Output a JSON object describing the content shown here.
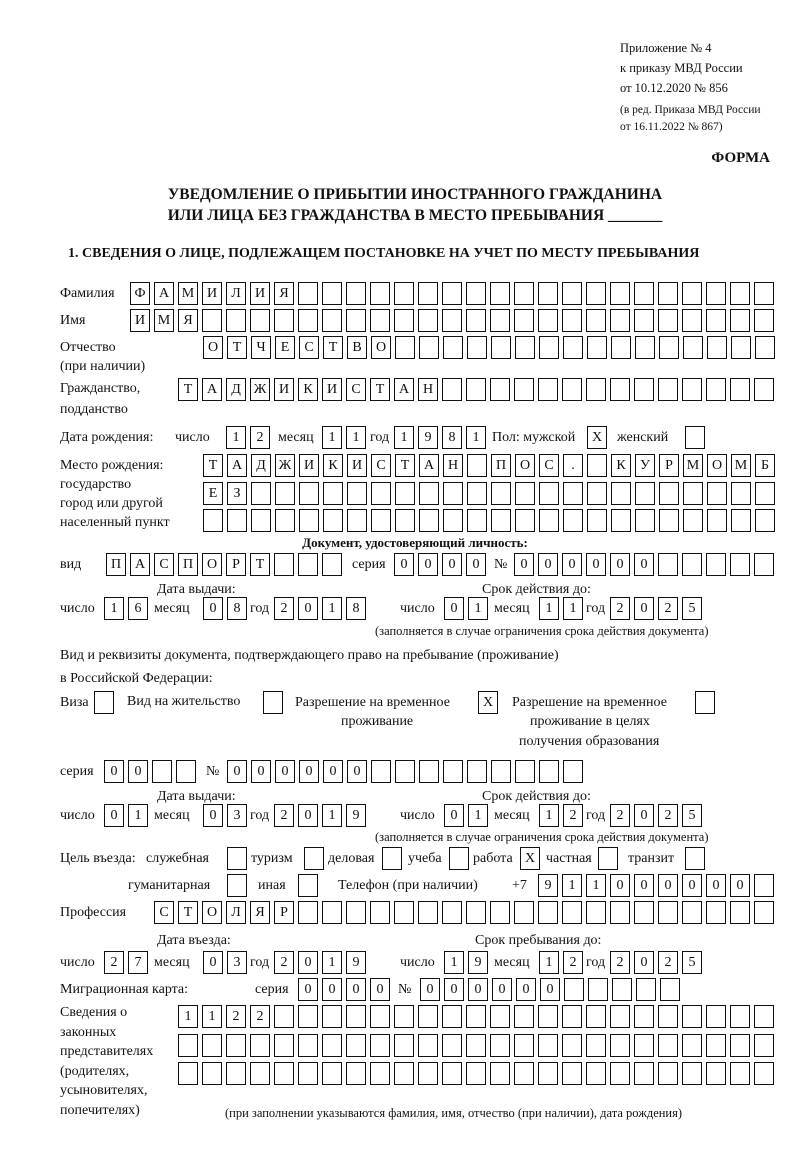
{
  "header": {
    "lines": [
      "Приложение № 4",
      "к приказу МВД России",
      "от 10.12.2020 № 856"
    ],
    "edition_lines": [
      "(в ред. Приказа МВД России",
      "от 16.11.2022 № 867)"
    ]
  },
  "form_label": "ФОРМА",
  "title": [
    "УВЕДОМЛЕНИЕ О ПРИБЫТИИ ИНОСТРАННОГО ГРАЖДАНИНА",
    "ИЛИ ЛИЦА БЕЗ ГРАЖДАНСТВА В МЕСТО ПРЕБЫВАНИЯ _______"
  ],
  "section1": "1. СВЕДЕНИЯ О ЛИЦЕ, ПОДЛЕЖАЩЕМ ПОСТАНОВКЕ НА УЧЕТ ПО МЕСТУ ПРЕБЫВАНИЯ",
  "person": {
    "surname": {
      "label": "Фамилия",
      "value": "ФАМИЛИЯ"
    },
    "name": {
      "label": "Имя",
      "value": "ИМЯ"
    },
    "patronymic": {
      "label": "Отчество",
      "label2": "(при наличии)",
      "value": "ОТЧЕСТВО"
    },
    "citizenship": {
      "label": "Гражданство,",
      "label2": "подданство",
      "value": "ТАДЖИКИСТАН"
    },
    "birth_date": {
      "label": "Дата рождения:",
      "day_label": "число",
      "day": "12",
      "month_label": "месяц",
      "month": "11",
      "year_label": "год",
      "year": "1981"
    },
    "sex": {
      "label": "Пол: мужской",
      "male": "X",
      "female_label": "женский",
      "female": ""
    },
    "birth_place": {
      "labels": [
        "Место рождения:",
        "государство",
        "город или другой",
        "населенный пункт"
      ],
      "rows": [
        "ТАДЖИКИСТАН ПОС. КУРМОМБ",
        "ЕЗ",
        ""
      ]
    }
  },
  "id_doc": {
    "heading": "Документ, удостоверяющий личность:",
    "type_label": "вид",
    "type": "ПАСПОРТ",
    "series_label": "серия",
    "series": "0000",
    "number_label": "№",
    "number": "000000",
    "issue_label": "Дата выдачи:",
    "valid_label": "Срок действия до:",
    "issue": {
      "day_label": "число",
      "day": "16",
      "month_label": "месяц",
      "month": "08",
      "year_label": "год",
      "year": "2018"
    },
    "valid": {
      "day_label": "число",
      "day": "01",
      "month_label": "месяц",
      "month": "11",
      "year_label": "год",
      "year": "2025"
    },
    "note": "(заполняется в случае ограничения срока действия документа)"
  },
  "stay_doc": {
    "heading1": "Вид и реквизиты документа, подтверждающего право на пребывание (проживание)",
    "heading2": "в Российской Федерации:",
    "visa_label": "Виза",
    "visa": "",
    "residence_label": "Вид на жительство",
    "residence": "",
    "trp_label": [
      "Разрешение на временное",
      "проживание"
    ],
    "trp": "X",
    "trp_edu_label": [
      "Разрешение на временное",
      "проживание в целях",
      "получения образования"
    ],
    "trp_edu": "",
    "series_label": "серия",
    "series": "00",
    "number_label": "№",
    "number": "000000",
    "issue_label": "Дата выдачи:",
    "valid_label": "Срок действия до:",
    "issue": {
      "day_label": "число",
      "day": "01",
      "month_label": "месяц",
      "month": "03",
      "year_label": "год",
      "year": "2019"
    },
    "valid": {
      "day_label": "число",
      "day": "01",
      "month_label": "месяц",
      "month": "12",
      "year_label": "год",
      "year": "2025"
    },
    "note": "(заполняется в случае ограничения срока действия документа)"
  },
  "purpose": {
    "label": "Цель въезда:",
    "options": [
      {
        "label": "служебная",
        "value": ""
      },
      {
        "label": "туризм",
        "value": ""
      },
      {
        "label": "деловая",
        "value": ""
      },
      {
        "label": "учеба",
        "value": ""
      },
      {
        "label": "работа",
        "value": "X"
      },
      {
        "label": "частная",
        "value": ""
      },
      {
        "label": "транзит",
        "value": ""
      },
      {
        "label": "гуманитарная",
        "value": ""
      },
      {
        "label": "иная",
        "value": ""
      }
    ]
  },
  "phone": {
    "label": "Телефон (при наличии)",
    "prefix": "+7",
    "value": "911000000"
  },
  "profession": {
    "label": "Профессия",
    "value": "СТОЛЯР"
  },
  "entry": {
    "entry_label": "Дата въезда:",
    "stay_label": "Срок пребывания до:",
    "entry_date": {
      "day_label": "число",
      "day": "27",
      "month_label": "месяц",
      "month": "03",
      "year_label": "год",
      "year": "2019"
    },
    "stay_until": {
      "day_label": "число",
      "day": "19",
      "month_label": "месяц",
      "month": "12",
      "year_label": "год",
      "year": "2025"
    }
  },
  "migration_card": {
    "label": "Миграционная карта:",
    "series_label": "серия",
    "series": "0000",
    "number_label": "№",
    "number": "000000"
  },
  "representatives": {
    "labels": [
      "Сведения о",
      "законных",
      "представителях",
      "(родителях,",
      "усыновителях,",
      "попечителях)"
    ],
    "rows": [
      "1122",
      "",
      ""
    ],
    "note": "(при заполнении указываются фамилия, имя, отчество (при наличии), дата рождения)"
  }
}
